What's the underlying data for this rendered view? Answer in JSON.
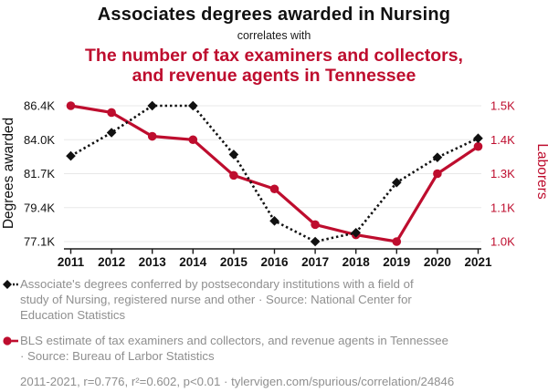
{
  "header": {
    "title": "Associates degrees awarded in Nursing",
    "connector": "correlates with",
    "subtitle_line1": "The number of tax examiners and collectors,",
    "subtitle_line2": "and revenue agents in Tennessee",
    "accent_color": "#be0d2e"
  },
  "chart_data": {
    "type": "line",
    "x": [
      2011,
      2012,
      2013,
      2014,
      2015,
      2016,
      2017,
      2018,
      2019,
      2020,
      2021
    ],
    "series": [
      {
        "name": "Associates degrees awarded in Nursing",
        "axis": "left",
        "color": "#111111",
        "style": "dotted",
        "marker": "diamond",
        "values": [
          82900,
          84500,
          86400,
          86400,
          83000,
          78500,
          77100,
          77700,
          81100,
          82800,
          84100
        ]
      },
      {
        "name": "Tax examiners, collectors, and revenue agents in Tennessee",
        "axis": "right",
        "color": "#be0d2e",
        "style": "solid",
        "marker": "circle",
        "values": [
          1500,
          1480,
          1410,
          1400,
          1290,
          1210,
          1050,
          1020,
          1000,
          1300,
          1380
        ]
      }
    ],
    "left_axis": {
      "label": "Degrees awarded",
      "tick_labels": [
        "86.4K",
        "84.0K",
        "81.7K",
        "79.4K",
        "77.1K"
      ],
      "tick_values": [
        86400,
        84000,
        81700,
        79400,
        77100
      ],
      "color": "#111111"
    },
    "right_axis": {
      "label": "Laborers",
      "tick_labels": [
        "1.5K",
        "1.4K",
        "1.3K",
        "1.1K",
        "1.0K"
      ],
      "tick_values": [
        1500,
        1400,
        1300,
        1100,
        1000
      ],
      "color": "#be0d2e"
    },
    "grid": "horizontal",
    "legend_position": "bottom"
  },
  "legend": {
    "items": [
      {
        "series": "degrees",
        "lines": [
          "Associate's degrees conferred by postsecondary institutions with a field of",
          "study of Nursing, registered nurse and other · Source: National Center for",
          "Education Statistics"
        ]
      },
      {
        "series": "laborers",
        "lines": [
          "BLS estimate of tax examiners and collectors, and revenue agents in Tennessee",
          "· Source: Bureau of Larbor Statistics"
        ]
      }
    ]
  },
  "footer": {
    "text": "2011-2021, r=0.776, r²=0.602, p<0.01 · tylervigen.com/spurious/correlation/24846"
  }
}
